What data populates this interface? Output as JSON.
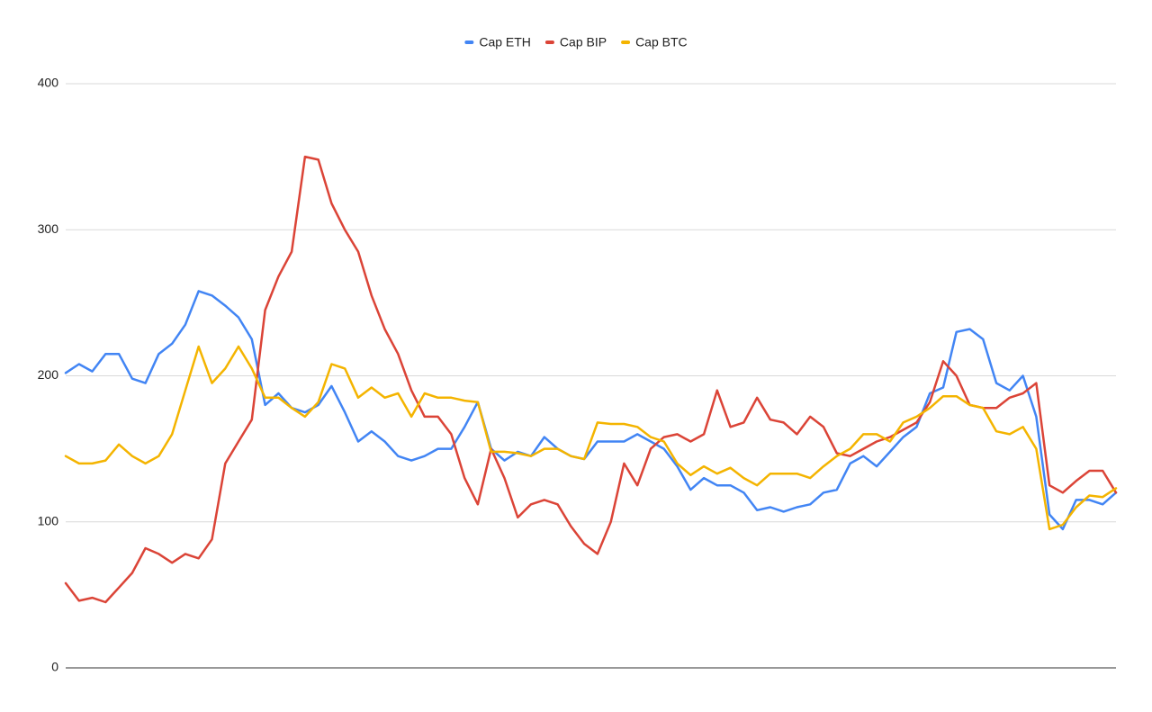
{
  "chart_data": {
    "type": "line",
    "series": [
      {
        "name": "Cap ETH",
        "color": "#4285f4",
        "values": [
          202,
          208,
          203,
          215,
          215,
          198,
          195,
          215,
          222,
          235,
          258,
          255,
          248,
          240,
          225,
          180,
          188,
          178,
          175,
          180,
          193,
          175,
          155,
          162,
          155,
          145,
          142,
          145,
          150,
          150,
          165,
          182,
          150,
          142,
          148,
          145,
          158,
          150,
          145,
          143,
          155,
          155,
          155,
          160,
          155,
          150,
          138,
          122,
          130,
          125,
          125,
          120,
          108,
          110,
          107,
          110,
          112,
          120,
          122,
          140,
          145,
          138,
          148,
          158,
          165,
          188,
          192,
          230,
          232,
          225,
          195,
          190,
          200,
          172,
          105,
          95,
          115,
          115,
          112,
          120
        ]
      },
      {
        "name": "Cap BIP",
        "color": "#db4437",
        "values": [
          58,
          46,
          48,
          45,
          55,
          65,
          82,
          78,
          72,
          78,
          75,
          88,
          140,
          155,
          170,
          245,
          268,
          285,
          350,
          348,
          318,
          300,
          285,
          255,
          232,
          215,
          190,
          172,
          172,
          160,
          130,
          112,
          150,
          130,
          103,
          112,
          115,
          112,
          97,
          85,
          78,
          100,
          140,
          125,
          150,
          158,
          160,
          155,
          160,
          190,
          165,
          168,
          185,
          170,
          168,
          160,
          172,
          165,
          147,
          145,
          150,
          155,
          158,
          163,
          168,
          182,
          210,
          200,
          180,
          178,
          178,
          185,
          188,
          195,
          125,
          120,
          128,
          135,
          135,
          120
        ]
      },
      {
        "name": "Cap BTC",
        "color": "#f4b400",
        "values": [
          145,
          140,
          140,
          142,
          153,
          145,
          140,
          145,
          160,
          190,
          220,
          195,
          205,
          220,
          205,
          185,
          185,
          178,
          172,
          182,
          208,
          205,
          185,
          192,
          185,
          188,
          172,
          188,
          185,
          185,
          183,
          182,
          148,
          148,
          147,
          145,
          150,
          150,
          145,
          143,
          168,
          167,
          167,
          165,
          158,
          155,
          140,
          132,
          138,
          133,
          137,
          130,
          125,
          133,
          133,
          133,
          130,
          138,
          145,
          150,
          160,
          160,
          155,
          168,
          172,
          178,
          186,
          186,
          180,
          178,
          162,
          160,
          165,
          150,
          95,
          98,
          110,
          118,
          117,
          123
        ]
      }
    ],
    "ylim": [
      0,
      400
    ],
    "yticks": [
      0,
      100,
      200,
      300,
      400
    ],
    "grid": true,
    "legend": "top"
  }
}
